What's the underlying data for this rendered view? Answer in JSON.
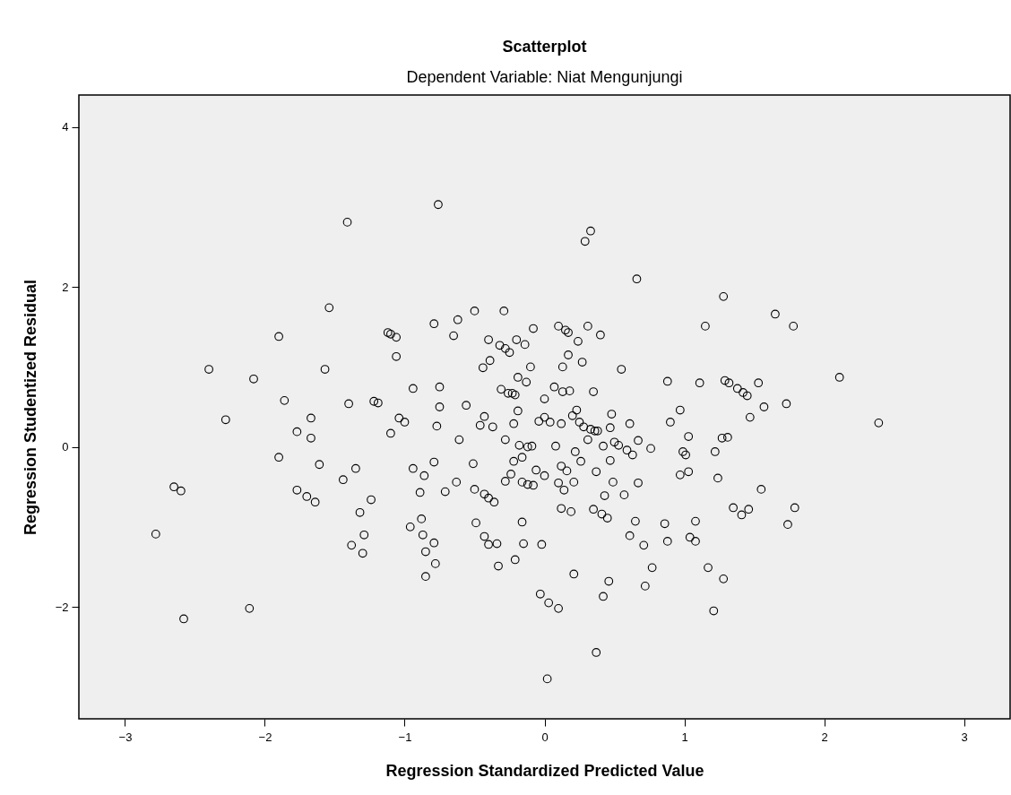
{
  "chart_data": {
    "type": "scatter",
    "title": "Scatterplot",
    "subtitle": "Dependent Variable: Niat Mengunjungi",
    "xlabel": "Regression Standardized Predicted Value",
    "ylabel": "Regression Studentized Residual",
    "xlim": [
      -3.33,
      3.33
    ],
    "ylim": [
      -3.4,
      4.4
    ],
    "xticks": [
      -3,
      -2,
      -1,
      0,
      1,
      2,
      3
    ],
    "yticks": [
      -2,
      0,
      2,
      4
    ],
    "marker": "circle",
    "x": [
      -2.78,
      -2.58,
      -2.65,
      -2.6,
      -2.4,
      -2.28,
      -2.11,
      -2.08,
      -1.9,
      -1.9,
      -1.86,
      -1.77,
      -1.77,
      -1.7,
      -1.67,
      -1.67,
      -1.64,
      -1.61,
      -1.57,
      -1.44,
      -1.41,
      -1.4,
      -1.38,
      -1.35,
      -1.54,
      -1.32,
      -1.29,
      -1.3,
      -1.24,
      -1.22,
      -1.19,
      -1.12,
      -1.1,
      -1.06,
      -1.06,
      -1.1,
      -1.04,
      -1.0,
      -0.96,
      -0.94,
      -0.94,
      -0.88,
      -0.87,
      -0.86,
      -0.89,
      -0.85,
      -0.85,
      -0.79,
      -0.75,
      -0.75,
      -0.77,
      -0.79,
      -0.79,
      -0.78,
      -0.76,
      -0.71,
      -0.65,
      -0.63,
      -0.62,
      -0.61,
      -0.56,
      -0.51,
      -0.5,
      -0.5,
      -0.49,
      -0.4,
      -0.46,
      -0.44,
      -0.43,
      -0.43,
      -0.4,
      -0.43,
      -0.4,
      -0.39,
      -0.37,
      -0.36,
      -0.34,
      -0.33,
      -0.32,
      -0.31,
      -0.29,
      -0.28,
      -0.28,
      -0.28,
      -0.26,
      -0.25,
      -0.24,
      -0.23,
      -0.22,
      -0.22,
      -0.21,
      -0.2,
      -0.21,
      -0.19,
      -0.19,
      -0.18,
      -0.16,
      -0.16,
      -0.16,
      -0.15,
      -0.14,
      -0.13,
      -0.12,
      -0.12,
      -0.1,
      -0.09,
      -0.08,
      -0.08,
      -0.06,
      -0.04,
      -0.03,
      -0.02,
      0.0,
      0.0,
      0.0,
      0.03,
      0.02,
      0.04,
      0.07,
      0.08,
      0.1,
      0.1,
      0.1,
      0.12,
      0.12,
      0.12,
      0.13,
      0.13,
      0.14,
      0.15,
      0.16,
      0.17,
      0.17,
      0.18,
      0.19,
      0.2,
      0.21,
      0.21,
      0.22,
      0.23,
      0.24,
      0.25,
      0.26,
      0.27,
      0.28,
      0.29,
      0.31,
      0.31,
      0.33,
      0.33,
      0.35,
      0.35,
      0.36,
      0.37,
      0.37,
      0.38,
      0.4,
      0.41,
      0.42,
      0.42,
      0.43,
      0.45,
      0.47,
      0.47,
      0.48,
      0.49,
      0.46,
      0.5,
      0.53,
      0.55,
      0.57,
      0.59,
      0.61,
      0.61,
      0.63,
      0.65,
      0.66,
      0.67,
      0.67,
      0.71,
      0.72,
      0.76,
      0.77,
      0.86,
      0.88,
      0.88,
      0.9,
      0.97,
      0.97,
      0.99,
      1.01,
      1.03,
      1.03,
      1.04,
      1.08,
      1.08,
      1.11,
      1.15,
      1.17,
      1.21,
      1.22,
      1.24,
      1.27,
      1.28,
      1.29,
      1.31,
      1.32,
      1.28,
      1.35,
      1.38,
      1.41,
      1.42,
      1.45,
      1.46,
      1.47,
      1.53,
      1.55,
      1.57,
      1.65,
      1.73,
      1.74,
      1.78,
      1.79,
      2.11,
      2.39
    ],
    "series": [
      {
        "color": "#000000",
        "values": [
          -1.09,
          -2.15,
          -0.5,
          -0.55,
          0.97,
          0.34,
          -2.02,
          0.85,
          1.38,
          -0.13,
          0.58,
          -0.54,
          0.19,
          -0.62,
          0.11,
          0.36,
          -0.69,
          -0.22,
          0.97,
          -0.41,
          2.81,
          0.54,
          -1.23,
          -0.27,
          1.74,
          -0.82,
          -1.1,
          -1.33,
          -0.66,
          0.57,
          0.55,
          1.43,
          1.41,
          1.37,
          1.13,
          0.17,
          0.36,
          0.31,
          -1.0,
          0.73,
          -0.27,
          -0.9,
          -1.1,
          -0.36,
          -0.57,
          -1.31,
          -1.62,
          1.54,
          0.75,
          0.5,
          0.26,
          -0.19,
          -1.2,
          -1.46,
          3.03,
          -0.56,
          1.39,
          -0.44,
          1.59,
          0.09,
          0.52,
          -0.21,
          1.7,
          -0.53,
          -0.95,
          -1.22,
          0.27,
          0.99,
          0.38,
          -0.59,
          -0.64,
          -1.12,
          1.34,
          1.08,
          0.25,
          -0.69,
          -1.21,
          -1.49,
          1.27,
          0.72,
          1.7,
          0.09,
          1.23,
          -0.43,
          0.67,
          1.18,
          -0.34,
          0.67,
          0.29,
          -0.18,
          -1.41,
          1.34,
          0.65,
          0.87,
          0.45,
          0.02,
          -0.13,
          -0.44,
          -0.94,
          -1.21,
          1.28,
          0.81,
          0.0,
          -0.47,
          1.0,
          0.01,
          -0.48,
          1.48,
          -0.29,
          0.32,
          -1.84,
          -1.22,
          0.6,
          0.37,
          -0.36,
          -1.95,
          -2.9,
          0.31,
          0.75,
          0.01,
          -0.45,
          1.51,
          -2.02,
          0.29,
          -0.24,
          -0.77,
          0.69,
          1.0,
          -0.54,
          1.46,
          -0.3,
          1.15,
          1.43,
          0.7,
          -0.81,
          0.39,
          -1.59,
          -0.44,
          -0.06,
          0.46,
          1.32,
          0.31,
          -0.18,
          1.06,
          0.25,
          2.57,
          1.51,
          0.09,
          2.7,
          0.22,
          -0.78,
          0.69,
          0.2,
          -0.31,
          -2.57,
          0.2,
          1.4,
          -0.84,
          0.01,
          -1.87,
          -0.61,
          -0.89,
          0.24,
          -0.17,
          0.41,
          -0.44,
          -1.68,
          0.06,
          0.02,
          0.97,
          -0.6,
          -0.04,
          0.29,
          -1.11,
          -0.1,
          -0.93,
          2.1,
          0.08,
          -0.45,
          -1.23,
          -1.74,
          -0.02,
          -1.51,
          -0.96,
          -1.18,
          0.82,
          0.31,
          0.46,
          -0.35,
          -0.06,
          -0.1,
          -0.31,
          0.13,
          -1.13,
          -0.93,
          -1.18,
          0.8,
          1.51,
          -1.51,
          -2.05,
          -0.06,
          -0.39,
          0.11,
          1.88,
          0.83,
          0.12,
          0.8,
          -1.65,
          -0.76,
          0.73,
          -0.85,
          0.68,
          0.64,
          -0.78,
          0.37,
          0.8,
          -0.53,
          0.5,
          1.66,
          0.54,
          -0.97,
          1.51,
          -0.76,
          0.87,
          0.3
        ]
      }
    ]
  }
}
